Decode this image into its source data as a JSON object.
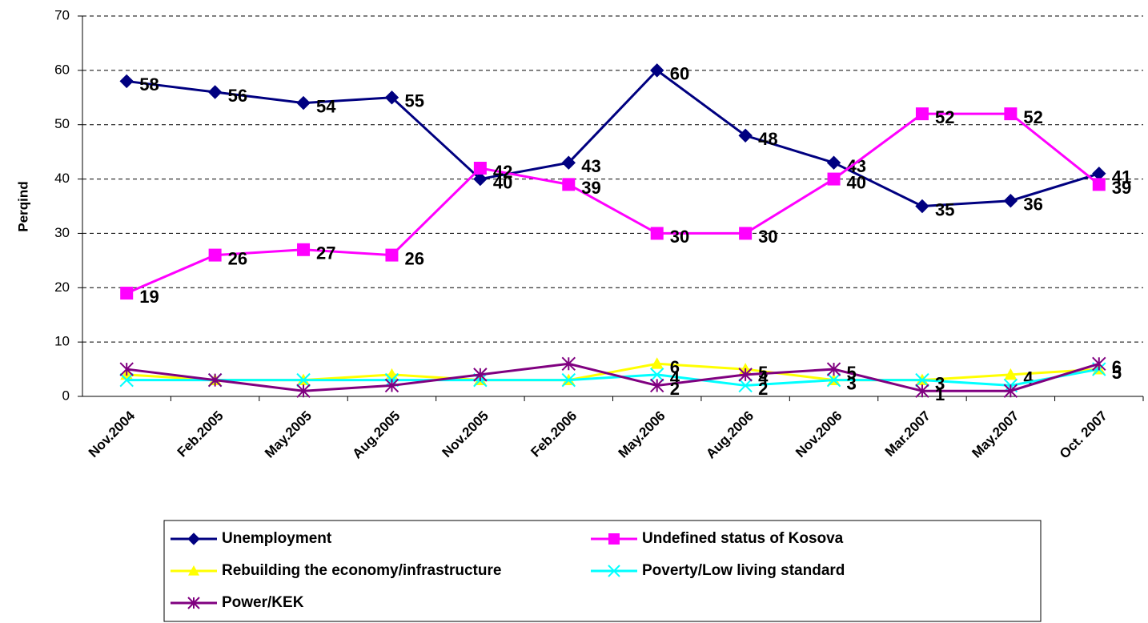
{
  "chart_data": {
    "type": "line",
    "y_label": "Perqind",
    "categories": [
      "Nov.2004",
      "Feb.2005",
      "May.2005",
      "Aug.2005",
      "Nov.2005",
      "Feb.2006",
      "May.2006",
      "Aug.2006",
      "Nov.2006",
      "Mar.2007",
      "May.2007",
      "Oct. 2007"
    ],
    "ylim": [
      0,
      70
    ],
    "yticks": [
      0,
      10,
      20,
      30,
      40,
      50,
      60,
      70
    ],
    "grid": true,
    "series": [
      {
        "name": "Unemployment",
        "color": "#000080",
        "marker": "diamond",
        "values": [
          58,
          56,
          54,
          55,
          40,
          43,
          60,
          48,
          43,
          35,
          36,
          41
        ],
        "value_labels": [
          "58",
          "56",
          "54",
          "55",
          "40",
          "43",
          "60",
          "48",
          "43",
          "35",
          "36",
          "41"
        ]
      },
      {
        "name": "Undefined status of Kosova",
        "color": "#ff00ff",
        "marker": "square",
        "values": [
          19,
          26,
          27,
          26,
          42,
          39,
          30,
          30,
          40,
          52,
          52,
          39
        ],
        "value_labels": [
          "19",
          "26",
          "27",
          "26",
          "42",
          "39",
          "30",
          "30",
          "40",
          "52",
          "52",
          "39"
        ]
      },
      {
        "name": "Rebuilding the economy/infrastructure",
        "color": "#ffff00",
        "marker": "triangle",
        "values": [
          4,
          3,
          3,
          4,
          3,
          3,
          6,
          5,
          3,
          3,
          4,
          5
        ],
        "value_labels": [
          null,
          null,
          null,
          null,
          null,
          null,
          "6",
          "5",
          "3",
          "3",
          "4",
          "5"
        ]
      },
      {
        "name": "Poverty/Low living standard",
        "color": "#00ffff",
        "marker": "x",
        "values": [
          3,
          3,
          3,
          3,
          3,
          3,
          4,
          2,
          3,
          3,
          2,
          5
        ],
        "value_labels": [
          null,
          null,
          null,
          null,
          null,
          null,
          "4",
          "2",
          "3",
          "3",
          null,
          "5"
        ]
      },
      {
        "name": "Power/KEK",
        "color": "#800080",
        "marker": "star",
        "values": [
          5,
          3,
          1,
          2,
          4,
          6,
          2,
          4,
          5,
          1,
          1,
          6
        ],
        "value_labels": [
          null,
          null,
          null,
          null,
          null,
          null,
          "2",
          "4",
          "5",
          "1",
          null,
          "6"
        ]
      }
    ]
  }
}
